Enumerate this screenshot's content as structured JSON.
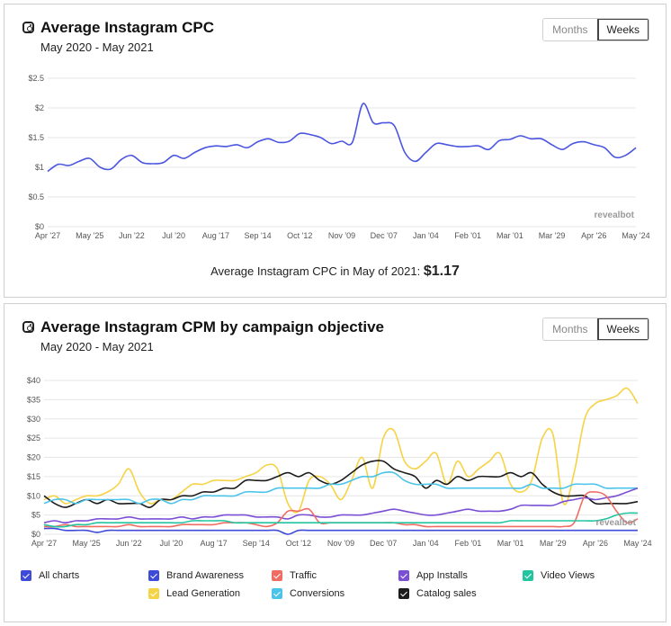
{
  "colors": {
    "cpc_line": "#4a55e0",
    "grid": "#e6e6e6",
    "brand_awareness": "#3d4bd8",
    "traffic": "#f06c62",
    "app_installs": "#7a4fd6",
    "video_views": "#22c5a0",
    "lead_generation": "#f6d245",
    "conversions": "#4cc3e8",
    "catalog_sales": "#1c1c1c",
    "all_charts": "#3d4bd8"
  },
  "cpc": {
    "title": "Average Instagram CPC",
    "subtitle": "May 2020 - May 2021",
    "toggle": {
      "months": "Months",
      "weeks": "Weeks"
    },
    "summary_label": "Average Instagram CPC in May of 2021:",
    "summary_value": "$1.17",
    "watermark": "revealbot"
  },
  "cpm": {
    "title": "Average Instagram CPM by campaign objective",
    "subtitle": "May 2020 - May 2021",
    "toggle": {
      "months": "Months",
      "weeks": "Weeks"
    },
    "watermark": "revealbot",
    "legend": [
      {
        "label": "All charts",
        "color_key": "all_charts"
      },
      {
        "label": "Brand Awareness",
        "color_key": "brand_awareness"
      },
      {
        "label": "Traffic",
        "color_key": "traffic"
      },
      {
        "label": "App Installs",
        "color_key": "app_installs"
      },
      {
        "label": "Video Views",
        "color_key": "video_views"
      },
      {
        "label": "Lead Generation",
        "color_key": "lead_generation"
      },
      {
        "label": "Conversions",
        "color_key": "conversions"
      },
      {
        "label": "Catalog sales",
        "color_key": "catalog_sales"
      }
    ]
  },
  "chart_data": [
    {
      "type": "line",
      "title": "Average Instagram CPC",
      "subtitle": "May 2020 - May 2021",
      "x_ticks": [
        "Apr '27",
        "May '25",
        "Jun '22",
        "Jul '20",
        "Aug '17",
        "Sep '14",
        "Oct '12",
        "Nov '09",
        "Dec '07",
        "Jan '04",
        "Feb '01",
        "Mar '01",
        "Mar '29",
        "Apr '26",
        "May '24"
      ],
      "y_ticks": [
        "$0",
        "$0.5",
        "$1",
        "$1.5",
        "$2",
        "$2.5"
      ],
      "ylim": [
        0,
        2.5
      ],
      "x_index_range": [
        0,
        56
      ],
      "series": [
        {
          "values": [
            0.93,
            1.05,
            1.03,
            1.1,
            1.15,
            1.0,
            0.97,
            1.13,
            1.2,
            1.08,
            1.06,
            1.08,
            1.2,
            1.15,
            1.25,
            1.33,
            1.36,
            1.35,
            1.38,
            1.33,
            1.43,
            1.48,
            1.42,
            1.44,
            1.57,
            1.55,
            1.5,
            1.4,
            1.44,
            1.42,
            2.07,
            1.75,
            1.75,
            1.7,
            1.25,
            1.1,
            1.25,
            1.4,
            1.38,
            1.35,
            1.35,
            1.36,
            1.3,
            1.45,
            1.47,
            1.53,
            1.48,
            1.48,
            1.38,
            1.3,
            1.4,
            1.43,
            1.38,
            1.33,
            1.17,
            1.2,
            1.33
          ]
        }
      ]
    },
    {
      "type": "line",
      "title": "Average Instagram CPM by campaign objective",
      "subtitle": "May 2020 - May 2021",
      "x_ticks": [
        "Apr '27",
        "May '25",
        "Jun '22",
        "Jul '20",
        "Aug '17",
        "Sep '14",
        "Oct '12",
        "Nov '09",
        "Dec '07",
        "Jan '04",
        "Feb '01",
        "Mar '01",
        "Mar '29",
        "Apr '26",
        "May '24"
      ],
      "y_ticks": [
        "$0",
        "$5",
        "$10",
        "$15",
        "$20",
        "$25",
        "$30",
        "$35",
        "$40"
      ],
      "ylim": [
        0,
        40
      ],
      "x_index_range": [
        0,
        56
      ],
      "series": [
        {
          "name": "Lead Generation",
          "key": "lead_generation",
          "values": [
            9,
            10,
            8,
            9,
            10,
            10,
            11,
            13,
            17,
            11,
            8,
            9,
            9,
            11,
            13,
            13,
            14,
            14,
            14,
            15,
            16,
            18,
            17,
            8,
            6,
            14,
            15,
            13,
            9,
            14,
            20,
            12,
            25,
            27,
            19,
            17,
            19,
            21,
            13,
            19,
            15,
            17,
            19,
            21,
            13,
            11,
            14,
            25,
            26,
            8,
            16,
            30,
            34,
            35,
            36,
            38,
            34
          ]
        },
        {
          "name": "Catalog sales",
          "key": "catalog_sales",
          "values": [
            10,
            8,
            7,
            8,
            9,
            8,
            9,
            8,
            8,
            8,
            7,
            9,
            9,
            10,
            10,
            11,
            11,
            12,
            12,
            14,
            14,
            14,
            15,
            16,
            15,
            16,
            14,
            13,
            14,
            16,
            18,
            19,
            19,
            17,
            16,
            15,
            12,
            14,
            13,
            15,
            14,
            15,
            15,
            15,
            16,
            15,
            16,
            13,
            11,
            10,
            10,
            10,
            8,
            8,
            8,
            8,
            8.5
          ]
        },
        {
          "name": "Conversions",
          "key": "conversions",
          "values": [
            8,
            9,
            9,
            8,
            9,
            9,
            9,
            9,
            9,
            8,
            9,
            9,
            8,
            9,
            9,
            10,
            10,
            10,
            10,
            11,
            11,
            11,
            12,
            12,
            12,
            12,
            12,
            13,
            13,
            14,
            15,
            15,
            16,
            16,
            14,
            13,
            13,
            13,
            12,
            12,
            12,
            12,
            12,
            12,
            12,
            12,
            13,
            12,
            12,
            12,
            13,
            13,
            13,
            12,
            12,
            12,
            12
          ]
        },
        {
          "name": "App Installs",
          "key": "app_installs",
          "values": [
            3,
            3.5,
            3,
            3.5,
            3.5,
            4,
            4,
            4,
            4.5,
            4,
            4,
            4,
            4,
            4.5,
            4,
            4.5,
            4.5,
            5,
            5,
            5,
            4.5,
            4.5,
            4.5,
            4,
            5,
            5,
            4.5,
            4.5,
            5,
            5,
            5,
            5.5,
            6,
            6.5,
            6,
            5.5,
            5,
            5,
            5.5,
            6,
            6.5,
            6,
            6,
            6,
            6.5,
            7.5,
            7.5,
            7.5,
            7.5,
            8.5,
            9,
            9.5,
            9,
            9.5,
            10,
            11,
            12
          ]
        },
        {
          "name": "Traffic",
          "key": "traffic",
          "values": [
            2,
            2,
            2.5,
            2,
            2,
            2,
            2,
            2,
            2.5,
            2,
            2,
            2,
            2,
            2.5,
            2.5,
            2.5,
            2.5,
            3,
            3,
            3,
            2.5,
            2,
            3,
            6,
            6,
            6.5,
            3,
            3,
            3,
            3,
            3,
            3,
            3,
            3,
            2.5,
            2.5,
            2,
            2,
            2,
            2,
            2,
            2,
            2,
            2,
            2,
            2,
            2,
            2,
            2,
            2,
            3,
            10,
            11,
            10,
            6,
            3,
            4
          ]
        },
        {
          "name": "Video Views",
          "key": "video_views",
          "values": [
            2.5,
            2,
            2,
            2.5,
            2.5,
            3,
            3,
            3,
            3,
            3,
            3,
            3,
            3,
            3,
            3.5,
            3.5,
            3.5,
            3.5,
            3,
            3,
            3,
            3,
            3,
            3,
            3,
            3,
            3,
            3,
            3,
            3,
            3,
            3,
            3,
            3,
            3,
            3,
            3,
            3,
            3,
            3,
            3,
            3,
            3,
            3,
            3.5,
            3.5,
            3.5,
            3.5,
            3.5,
            3.5,
            3.5,
            3.5,
            3.5,
            4,
            5,
            5.5,
            5.5
          ]
        },
        {
          "name": "Brand Awareness",
          "key": "brand_awareness",
          "values": [
            1.5,
            1.5,
            1,
            1,
            1,
            0.5,
            1,
            1,
            1,
            1,
            1,
            1,
            1,
            1,
            1,
            1,
            1,
            1,
            1,
            1,
            1,
            1,
            1,
            0,
            1,
            1,
            1,
            1,
            1,
            1,
            1,
            1,
            1,
            1,
            1,
            1,
            1,
            1,
            1,
            1,
            1,
            1,
            1,
            1,
            1,
            1,
            1,
            1,
            1,
            1,
            1,
            1,
            1,
            1,
            1,
            1,
            1
          ]
        }
      ]
    }
  ]
}
